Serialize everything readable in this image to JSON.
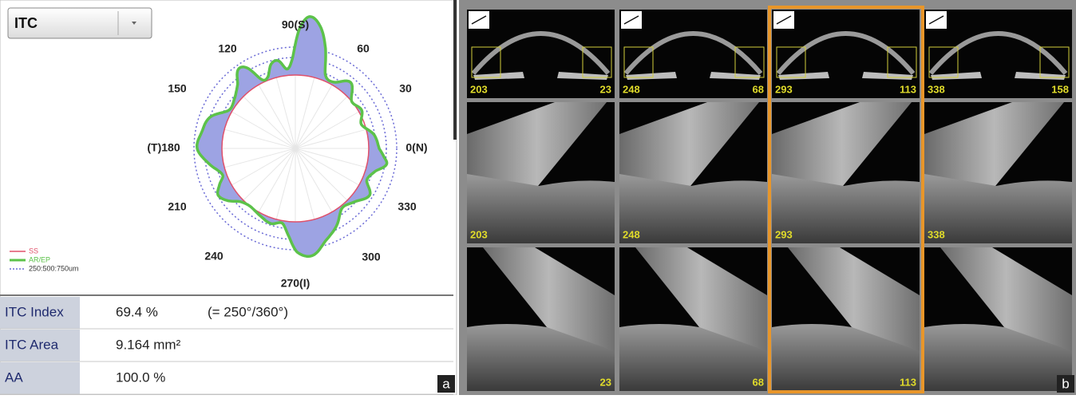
{
  "left_panel": {
    "dropdown": "ITC",
    "polar_labels": [
      "90(S)",
      "60",
      "30",
      "0(N)",
      "330",
      "300",
      "270(I)",
      "240",
      "210",
      "(T)180",
      "150",
      "120"
    ],
    "legend": [
      "SS",
      "AR/EP",
      "250:500:750um"
    ],
    "table": {
      "rows": [
        [
          "ITC Index",
          "69.4 %",
          "(= 250°/360°)"
        ],
        [
          "ITC Area",
          "9.164 mm²"
        ],
        [
          "AA",
          "100.0 %"
        ]
      ]
    },
    "panel_label": "a"
  },
  "right_panel": {
    "top_row": [
      {
        "left": "203",
        "right": "23"
      },
      {
        "left": "248",
        "right": "68"
      },
      {
        "left": "293",
        "right": "113"
      },
      {
        "left": "338",
        "right": "158"
      }
    ],
    "middle_row": [
      "203",
      "248",
      "293",
      "338"
    ],
    "bottom_row": [
      "23",
      "68",
      "113"
    ],
    "panel_label": "b"
  }
}
